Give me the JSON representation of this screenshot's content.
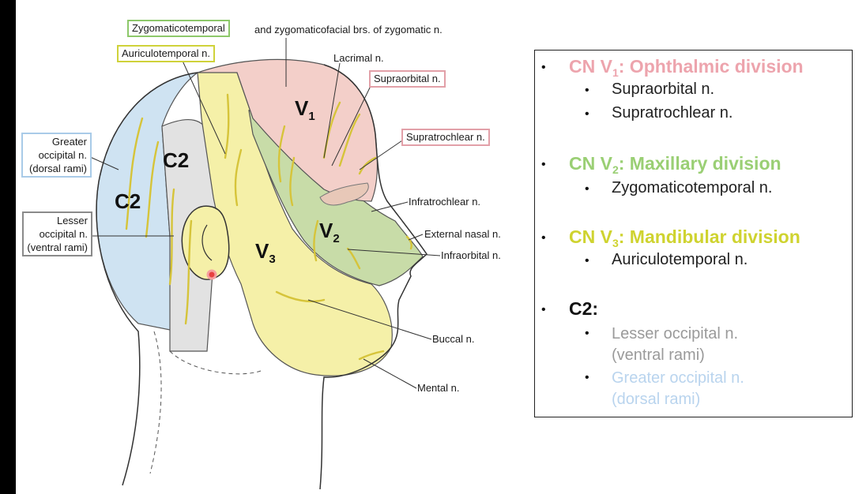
{
  "diagram": {
    "labels": {
      "zygomaticotemporal": "Zygomaticotemporal",
      "zygomaticofacial_rest": "and zygomaticofacial brs. of zygomatic n.",
      "auriculotemporal": "Auriculotemporal n.",
      "lacrimal": "Lacrimal n.",
      "supraorbital": "Supraorbital n.",
      "supratrochlear": "Supratrochlear n.",
      "greater_occipital": "Greater occipital n. (dorsal rami)",
      "lesser_occipital": "Lesser occipital n. (ventral rami)",
      "infratrochlear": "Infratrochlear n.",
      "external_nasal": "External nasal n.",
      "infraorbital": "Infraorbital n.",
      "buccal": "Buccal n.",
      "mental": "Mental n."
    },
    "regions": {
      "v1": "V",
      "v1_sub": "1",
      "v2": "V",
      "v2_sub": "2",
      "v3": "V",
      "v3_sub": "3",
      "c2_back": "C2",
      "c2_neck": "C2"
    },
    "colors": {
      "v1": "#f3cfc9",
      "v2": "#c8dca8",
      "v3": "#f5f0a8",
      "c2_blue": "#cfe3f2",
      "c2_gray": "#e2e2e2",
      "nerve": "#d6c43a"
    }
  },
  "legend": {
    "v1_head_pre": "CN V",
    "v1_head_sub": "1",
    "v1_head_post": ": Ophthalmic division",
    "v1_items": [
      "Supraorbital n.",
      "Supratrochlear n."
    ],
    "v2_head_pre": "CN V",
    "v2_head_sub": "2",
    "v2_head_post": ": Maxillary division",
    "v2_items": [
      "Zygomaticotemporal n."
    ],
    "v3_head_pre": "CN V",
    "v3_head_sub": "3",
    "v3_head_post": ": Mandibular division",
    "v3_items": [
      "Auriculotemporal n."
    ],
    "c2_head": "C2:",
    "c2_lesser": "Lesser occipital n. (ventral rami)",
    "c2_greater": "Greater occipital n. (dorsal rami)",
    "colors": {
      "pink": "#eda4ad",
      "green": "#9acf74",
      "yellow": "#cfd330",
      "gray": "#9a9a9a",
      "blue": "#b9d4ee"
    }
  }
}
